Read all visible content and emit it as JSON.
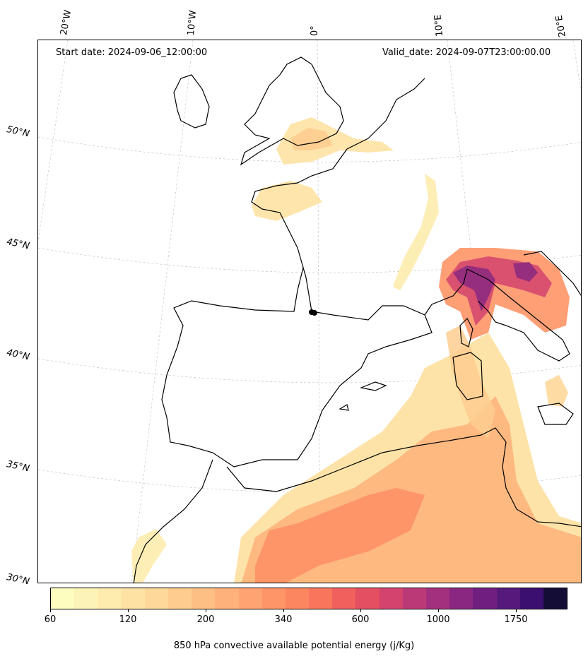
{
  "header": {
    "start_date": "Start date: 2024-09-06_12:00:00",
    "valid_date": "Valid_date: 2024-09-07T23:00:00.00"
  },
  "longitude_labels": [
    "20°W",
    "10°W",
    "0°",
    "10°E",
    "20°E"
  ],
  "latitude_labels": [
    "50°N",
    "45°N",
    "40°N",
    "35°N",
    "30°N"
  ],
  "colorbar": {
    "title": "850 hPa convective available potential energy (j/Kg)",
    "tick_labels": [
      "60",
      "120",
      "200",
      "340",
      "600",
      "1000",
      "1750"
    ],
    "colors": [
      "#fcfdbf",
      "#fcf4b6",
      "#fdecae",
      "#fde2a3",
      "#fed89a",
      "#fecc8f",
      "#febf84",
      "#feb27a",
      "#fea471",
      "#fe9567",
      "#fc8660",
      "#f8765c",
      "#f1605d",
      "#e54f62",
      "#d3436e",
      "#bc3978",
      "#a3307e",
      "#8a2881",
      "#701f81",
      "#561a7c",
      "#3b0f70",
      "#140e36"
    ]
  },
  "map": {
    "projection": "Lambert-like conic (lat/lon graticule)",
    "region": "Western Europe, Iberia, Western Mediterranean, North Africa",
    "field": "850 hPa CAPE",
    "gridlines": true,
    "coastlines": true
  }
}
